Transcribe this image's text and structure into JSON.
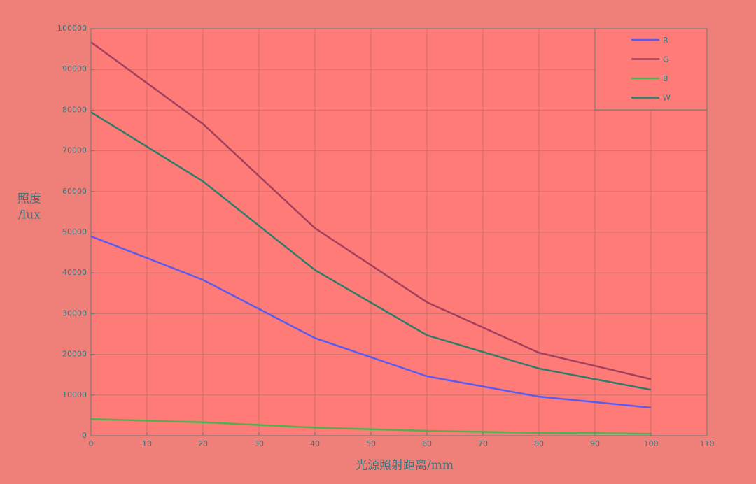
{
  "chart_data": {
    "type": "line",
    "x": [
      0,
      20,
      40,
      60,
      80,
      100
    ],
    "series": [
      {
        "name": "R",
        "color": "#5a5cf0",
        "values": [
          49000,
          38300,
          24000,
          14600,
          9600,
          6900
        ]
      },
      {
        "name": "G",
        "color": "#a2405e",
        "values": [
          96700,
          76600,
          51000,
          32800,
          20400,
          13900
        ]
      },
      {
        "name": "B",
        "color": "#52b04e",
        "values": [
          4100,
          3300,
          2000,
          1200,
          700,
          500
        ]
      },
      {
        "name": "W",
        "color": "#2f7c6a",
        "values": [
          79500,
          62500,
          40700,
          24700,
          16500,
          11300
        ]
      }
    ],
    "xlabel": "光源照射距离/mm",
    "ylabel": [
      "照度",
      "/lux"
    ],
    "xlim": [
      0,
      110
    ],
    "xticks": [
      0,
      10,
      20,
      30,
      40,
      50,
      60,
      70,
      80,
      90,
      100,
      110
    ],
    "ylim": [
      0,
      100000
    ],
    "yticks": [
      0,
      10000,
      20000,
      30000,
      40000,
      50000,
      60000,
      70000,
      80000,
      90000,
      100000
    ],
    "grid": true,
    "legend": "northeast"
  }
}
